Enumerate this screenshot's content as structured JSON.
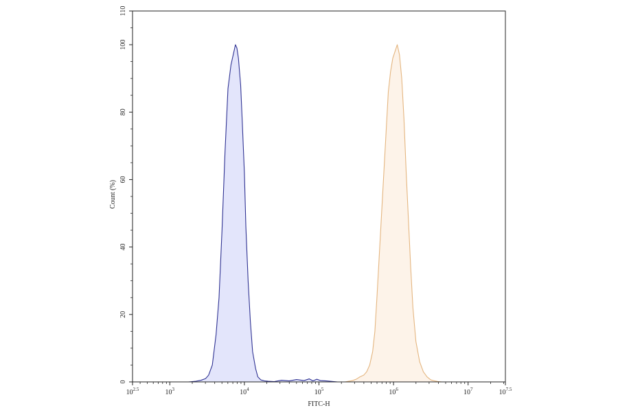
{
  "chart_data": {
    "type": "area",
    "title": "",
    "xlabel": "FITC-H",
    "ylabel": "Count (%)",
    "xscale": "log10",
    "xlim": [
      2.5,
      7.5
    ],
    "ylim": [
      0,
      110
    ],
    "grid": false,
    "legend": "none",
    "x_ticks": [
      {
        "value": 2.5,
        "base": "10",
        "exp": "2.5"
      },
      {
        "value": 3,
        "base": "10",
        "exp": "3"
      },
      {
        "value": 4,
        "base": "10",
        "exp": "4"
      },
      {
        "value": 5,
        "base": "10",
        "exp": "5"
      },
      {
        "value": 6,
        "base": "10",
        "exp": "6"
      },
      {
        "value": 7,
        "base": "10",
        "exp": "7"
      },
      {
        "value": 7.5,
        "base": "10",
        "exp": "7.5"
      }
    ],
    "y_ticks": [
      "0",
      "20",
      "40",
      "60",
      "80",
      "100",
      "110"
    ],
    "series": [
      {
        "color": "#2e3192",
        "fill": "#e3e5fb",
        "x": [
          3.25,
          3.35,
          3.42,
          3.48,
          3.52,
          3.57,
          3.62,
          3.66,
          3.7,
          3.74,
          3.78,
          3.82,
          3.85,
          3.88,
          3.9,
          3.92,
          3.95,
          3.97,
          4.0,
          4.02,
          4.05,
          4.08,
          4.11,
          4.15,
          4.18,
          4.22,
          4.27,
          4.32,
          4.4,
          4.5,
          4.6,
          4.7,
          4.8,
          4.87,
          4.92,
          4.97,
          5.02,
          5.1,
          5.2,
          5.25
        ],
        "y": [
          0,
          0.2,
          0.5,
          1,
          2,
          5,
          14,
          25,
          45,
          68,
          87,
          94,
          97,
          100,
          99,
          96,
          88,
          78,
          62,
          46,
          30,
          18,
          9,
          4,
          1.5,
          0.6,
          0.3,
          0.2,
          0.1,
          0.5,
          0.3,
          0.7,
          0.4,
          0.9,
          0.3,
          0.8,
          0.4,
          0.3,
          0.1,
          0
        ]
      },
      {
        "color": "#e4b57f",
        "fill": "#fdf3e9",
        "x": [
          5.35,
          5.45,
          5.5,
          5.55,
          5.6,
          5.64,
          5.68,
          5.72,
          5.75,
          5.78,
          5.81,
          5.84,
          5.87,
          5.9,
          5.93,
          5.96,
          5.99,
          6.02,
          6.05,
          6.08,
          6.11,
          6.14,
          6.17,
          6.2,
          6.23,
          6.26,
          6.3,
          6.35,
          6.4,
          6.45,
          6.5,
          6.55,
          6.6,
          6.65
        ],
        "y": [
          0,
          0.4,
          0.8,
          1.5,
          2,
          3,
          5,
          9,
          15,
          26,
          38,
          50,
          62,
          74,
          86,
          92,
          96,
          98,
          100,
          97,
          90,
          78,
          62,
          48,
          34,
          22,
          12,
          6,
          3,
          1.5,
          0.6,
          0.3,
          0.1,
          0
        ]
      }
    ]
  }
}
